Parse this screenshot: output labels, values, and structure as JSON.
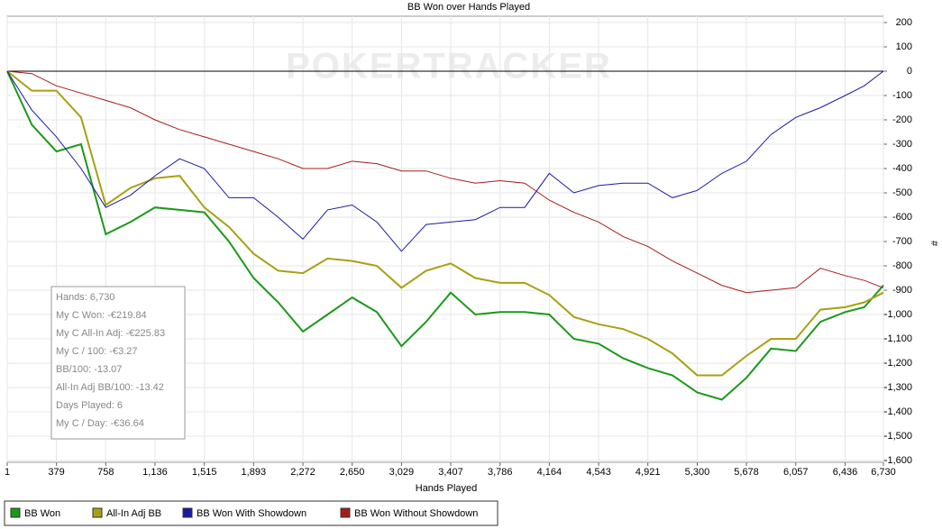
{
  "chart_data": {
    "type": "line",
    "title": "BB Won over Hands Played",
    "watermark": "POKERTRACKER",
    "x_label": "Hands Played",
    "y_label": "#",
    "x": [
      1,
      190,
      379,
      568,
      758,
      947,
      1136,
      1325,
      1515,
      1704,
      1893,
      2082,
      2272,
      2461,
      2650,
      2840,
      3029,
      3218,
      3407,
      3596,
      3786,
      3975,
      4164,
      4353,
      4543,
      4732,
      4921,
      5110,
      5300,
      5489,
      5678,
      5867,
      6057,
      6246,
      6436,
      6583,
      6730
    ],
    "series": [
      {
        "name": "BB Won",
        "color": "#1a9a1a",
        "values": [
          0,
          -220,
          -330,
          -300,
          -670,
          -620,
          -560,
          -570,
          -580,
          -700,
          -850,
          -950,
          -1070,
          -1000,
          -930,
          -990,
          -1130,
          -1030,
          -910,
          -1000,
          -990,
          -990,
          -1000,
          -1100,
          -1120,
          -1180,
          -1220,
          -1250,
          -1320,
          -1350,
          -1260,
          -1140,
          -1150,
          -1030,
          -990,
          -970,
          -880
        ]
      },
      {
        "name": "All-In Adj BB",
        "color": "#a8a012",
        "values": [
          0,
          -80,
          -80,
          -190,
          -550,
          -480,
          -440,
          -430,
          -560,
          -640,
          -750,
          -820,
          -830,
          -770,
          -780,
          -800,
          -890,
          -820,
          -790,
          -850,
          -870,
          -870,
          -920,
          -1010,
          -1040,
          -1060,
          -1100,
          -1160,
          -1250,
          -1250,
          -1170,
          -1100,
          -1100,
          -980,
          -970,
          -950,
          -910
        ]
      },
      {
        "name": "BB Won With Showdown",
        "color": "#1a1aa8",
        "values": [
          0,
          -160,
          -270,
          -400,
          -560,
          -510,
          -430,
          -360,
          -400,
          -520,
          -520,
          -600,
          -690,
          -570,
          -550,
          -620,
          -740,
          -630,
          -620,
          -610,
          -560,
          -560,
          -420,
          -500,
          -470,
          -460,
          -460,
          -520,
          -490,
          -420,
          -370,
          -260,
          -190,
          -150,
          -100,
          -60,
          0
        ]
      },
      {
        "name": "BB Won Without Showdown",
        "color": "#a81a1a",
        "values": [
          0,
          -10,
          -60,
          -90,
          -120,
          -150,
          -200,
          -240,
          -270,
          -300,
          -330,
          -360,
          -400,
          -400,
          -370,
          -380,
          -410,
          -410,
          -440,
          -460,
          -450,
          -460,
          -530,
          -580,
          -620,
          -680,
          -720,
          -780,
          -830,
          -880,
          -910,
          -900,
          -890,
          -810,
          -840,
          -860,
          -890
        ]
      }
    ],
    "xlim": [
      1,
      6730
    ],
    "ylim": [
      -1600,
      200
    ],
    "xticks": [
      1,
      379,
      758,
      {
        "value": 1136,
        "label": "1,136"
      },
      {
        "value": 1515,
        "label": "1,515"
      },
      {
        "value": 1893,
        "label": "1,893"
      },
      {
        "value": 2272,
        "label": "2,272"
      },
      {
        "value": 2650,
        "label": "2,650"
      },
      {
        "value": 3029,
        "label": "3,029"
      },
      {
        "value": 3407,
        "label": "3,407"
      },
      {
        "value": 3786,
        "label": "3,786"
      },
      {
        "value": 4164,
        "label": "4,164"
      },
      {
        "value": 4543,
        "label": "4,543"
      },
      {
        "value": 4921,
        "label": "4,921"
      },
      {
        "value": 5300,
        "label": "5,300"
      },
      {
        "value": 5678,
        "label": "5,678"
      },
      {
        "value": 6057,
        "label": "6,057"
      },
      {
        "value": 6436,
        "label": "6,436"
      },
      {
        "value": 6730,
        "label": "6,730"
      }
    ],
    "yticks": [
      200,
      100,
      0,
      -100,
      -200,
      -300,
      -400,
      -500,
      -600,
      -700,
      -800,
      -900,
      {
        "value": -1000,
        "label": "-1,000"
      },
      {
        "value": -1100,
        "label": "-1,100"
      },
      {
        "value": -1200,
        "label": "-1,200"
      },
      {
        "value": -1300,
        "label": "-1,300"
      },
      {
        "value": -1400,
        "label": "-1,400"
      },
      {
        "value": -1500,
        "label": "-1,500"
      },
      {
        "value": -1600,
        "label": "-1,600"
      }
    ],
    "grid": true,
    "zero_line": 0,
    "stats": [
      "Hands: 6,730",
      "My C Won: -€219.84",
      "My C All-In Adj: -€225.83",
      "My C / 100: -€3.27",
      "BB/100: -13.07",
      "All-In Adj BB/100: -13.42",
      "Days Played: 6",
      "My C / Day: -€36.64"
    ],
    "legend": "bottom-left"
  }
}
